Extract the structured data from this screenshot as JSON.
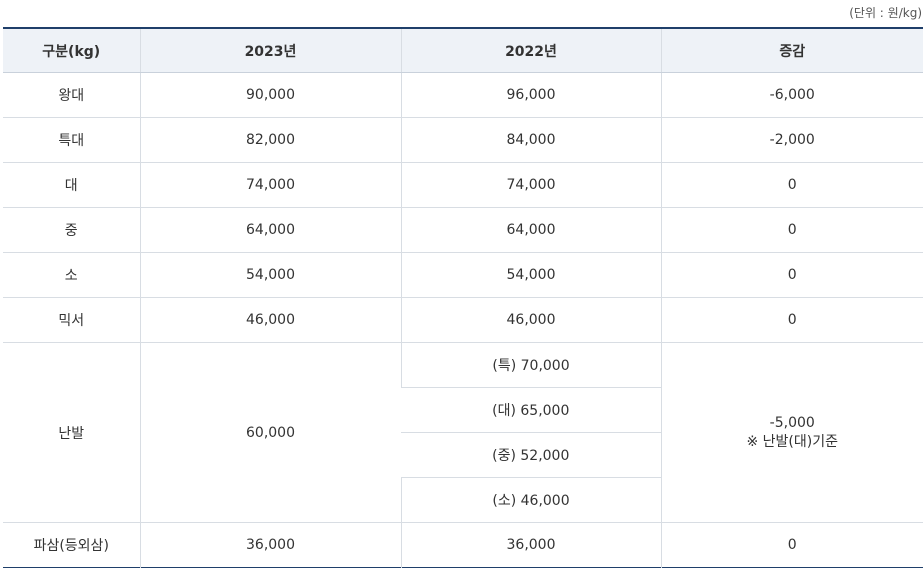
{
  "unit_note": "(단위 : 원/kg)",
  "headers": [
    "구분(kg)",
    "2023년",
    "2022년",
    "증감"
  ],
  "rows": [
    {
      "grade": "왕대",
      "y2023": "90,000",
      "y2022": "96,000",
      "change": "-6,000"
    },
    {
      "grade": "특대",
      "y2023": "82,000",
      "y2022": "84,000",
      "change": "-2,000"
    },
    {
      "grade": "대",
      "y2023": "74,000",
      "y2022": "74,000",
      "change": "0"
    },
    {
      "grade": "중",
      "y2023": "64,000",
      "y2022": "64,000",
      "change": "0"
    },
    {
      "grade": "소",
      "y2023": "54,000",
      "y2022": "54,000",
      "change": "0"
    },
    {
      "grade": "믹서",
      "y2023": "46,000",
      "y2022": "46,000",
      "change": "0"
    }
  ],
  "nanbal": {
    "grade": "난발",
    "y2023": "60,000",
    "y2022": [
      "(특) 70,000",
      "(대) 65,000",
      "(중) 52,000",
      "(소) 46,000"
    ],
    "change": "-5,000",
    "change_note": "※ 난발(대)기준"
  },
  "pasam": {
    "grade": "파삼(등외삼)",
    "y2023": "36,000",
    "y2022": "36,000",
    "change": "0"
  }
}
